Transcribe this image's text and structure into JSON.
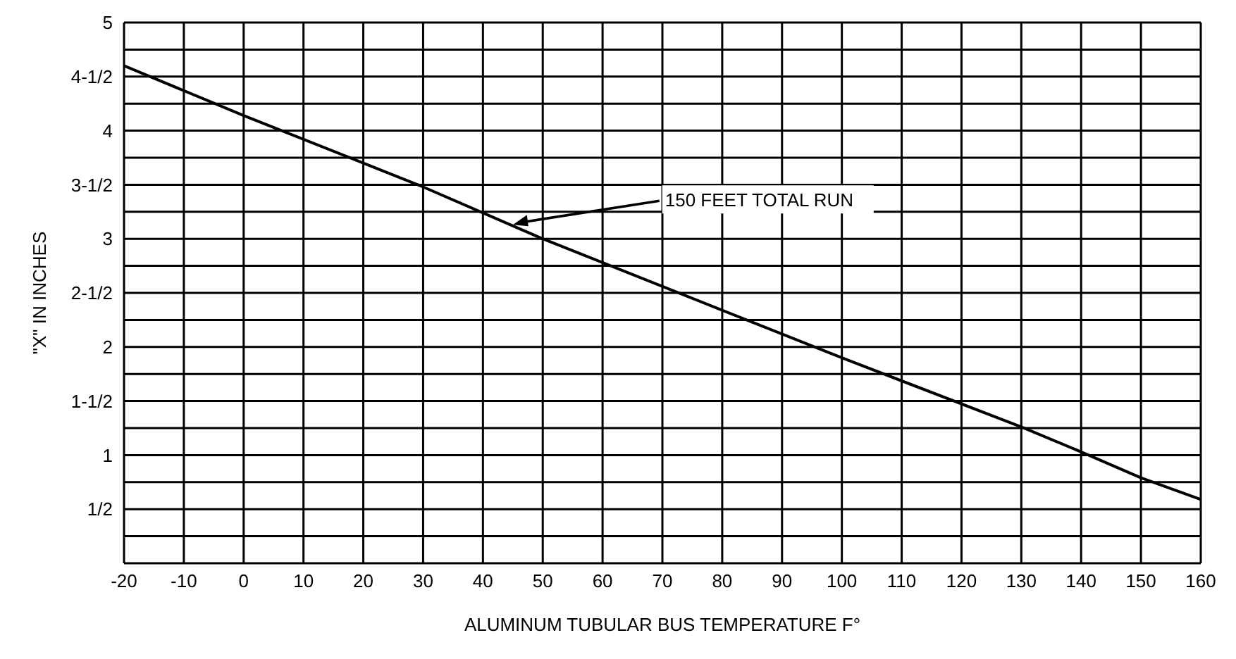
{
  "chart_data": {
    "type": "line",
    "xlabel": "ALUMINUM TUBULAR BUS TEMPERATURE F°",
    "ylabel": "\"X\" IN INCHES",
    "x": [
      -20,
      0,
      20,
      30,
      50,
      100,
      130,
      140,
      150,
      160
    ],
    "series": [
      {
        "color": "#000000",
        "values": [
          4.6,
          4.14,
          3.7,
          3.48,
          3.0,
          1.9,
          1.26,
          1.03,
          0.79,
          0.59
        ]
      }
    ],
    "xlim": [
      -20,
      160
    ],
    "xticks": [
      -20,
      -10,
      0,
      10,
      20,
      30,
      40,
      50,
      60,
      70,
      80,
      90,
      100,
      110,
      120,
      130,
      140,
      150,
      160
    ],
    "ylim": [
      0,
      5
    ],
    "yticks": [
      {
        "value": 0,
        "label": null
      },
      {
        "value": 0.25,
        "label": null
      },
      {
        "value": 0.5,
        "label": "1/2"
      },
      {
        "value": 0.75,
        "label": null
      },
      {
        "value": 1,
        "label": "1"
      },
      {
        "value": 1.25,
        "label": null
      },
      {
        "value": 1.5,
        "label": "1-1/2"
      },
      {
        "value": 1.75,
        "label": null
      },
      {
        "value": 2,
        "label": "2"
      },
      {
        "value": 2.25,
        "label": null
      },
      {
        "value": 2.5,
        "label": "2-1/2"
      },
      {
        "value": 2.75,
        "label": null
      },
      {
        "value": 3,
        "label": "3"
      },
      {
        "value": 3.25,
        "label": null
      },
      {
        "value": 3.5,
        "label": "3-1/2"
      },
      {
        "value": 3.75,
        "label": null
      },
      {
        "value": 4,
        "label": "4"
      },
      {
        "value": 4.25,
        "label": null
      },
      {
        "value": 4.5,
        "label": "4-1/2"
      },
      {
        "value": 4.75,
        "label": null
      },
      {
        "value": 5,
        "label": "5"
      }
    ],
    "grid": true,
    "marker": "none",
    "line_style": "solid",
    "annotations": [
      {
        "text": "150 FEET TOTAL RUN",
        "x": 45,
        "y": 3.13
      }
    ]
  }
}
